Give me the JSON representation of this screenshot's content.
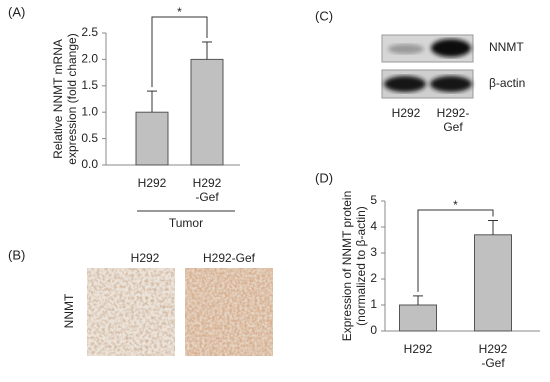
{
  "chart_data": [
    {
      "type": "bar",
      "panel_label": "(A)",
      "ylabel": "Relative NNMT mRNA\nexpression (fold change)",
      "categories": [
        "H292",
        "H292\n-Gef"
      ],
      "values": [
        1.0,
        2.0
      ],
      "errors": [
        0.4,
        0.33
      ],
      "color": "#c0c0c0",
      "ylim": [
        0,
        2.5
      ],
      "yticks": [
        {
          "value": 0,
          "label": "0.0"
        },
        0.5,
        {
          "value": 1,
          "label": "1.0"
        },
        1.5,
        {
          "value": 2,
          "label": "2.0"
        },
        2.5
      ],
      "annotation": "*",
      "group_label": "Tumor"
    },
    {
      "type": "bar",
      "panel_label": "(D)",
      "ylabel": "Expression of NNMT protein\n(normalized to β-actin)",
      "categories": [
        "H292",
        "H292\n-Gef"
      ],
      "values": [
        1.0,
        3.7
      ],
      "errors": [
        0.35,
        0.55
      ],
      "color": "#c0c0c0",
      "ylim": [
        0,
        5
      ],
      "yticks": [
        0,
        1,
        2,
        3,
        4,
        5
      ],
      "annotation": "*"
    }
  ],
  "panel_b": {
    "label": "(B)",
    "columns": [
      "H292",
      "H292-Gef"
    ],
    "row_label": "NNMT"
  },
  "panel_c": {
    "label": "(C)",
    "bands": [
      "NNMT",
      "β-actin"
    ],
    "lanes": [
      "H292",
      "H292-\nGef"
    ]
  }
}
